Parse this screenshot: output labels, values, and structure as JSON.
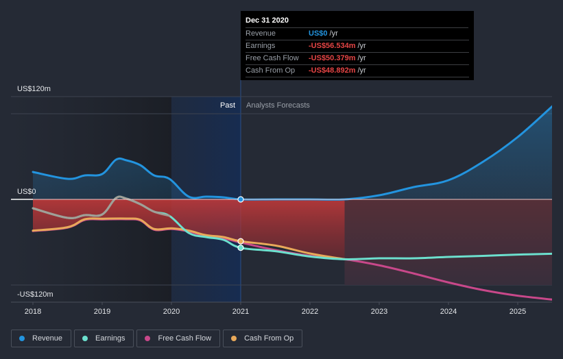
{
  "tooltip": {
    "date": "Dec 31 2020",
    "rows": [
      {
        "label": "Revenue",
        "value": "US$0",
        "unit": "/yr",
        "color": "#2394df"
      },
      {
        "label": "Earnings",
        "value": "-US$56.534m",
        "unit": "/yr",
        "color": "#e64545"
      },
      {
        "label": "Free Cash Flow",
        "value": "-US$50.379m",
        "unit": "/yr",
        "color": "#e64545"
      },
      {
        "label": "Cash From Op",
        "value": "-US$48.892m",
        "unit": "/yr",
        "color": "#e64545"
      }
    ]
  },
  "legend": [
    {
      "label": "Revenue",
      "color": "#2394df"
    },
    {
      "label": "Earnings",
      "color": "#6ce0ce"
    },
    {
      "label": "Free Cash Flow",
      "color": "#c8488a"
    },
    {
      "label": "Cash From Op",
      "color": "#e8a95a"
    }
  ],
  "chart_data": {
    "type": "line",
    "title": "",
    "xlabel": "",
    "ylabel": "",
    "ylim": [
      -120,
      120
    ],
    "xlim": [
      2017.7,
      2025.5
    ],
    "y_ticks": [
      {
        "value": 120,
        "label": "US$120m"
      },
      {
        "value": 0,
        "label": "US$0"
      },
      {
        "value": -120,
        "label": "-US$120m"
      }
    ],
    "x_ticks": [
      {
        "value": 2018,
        "label": "2018"
      },
      {
        "value": 2019,
        "label": "2019"
      },
      {
        "value": 2020,
        "label": "2020"
      },
      {
        "value": 2021,
        "label": "2021"
      },
      {
        "value": 2022,
        "label": "2022"
      },
      {
        "value": 2023,
        "label": "2023"
      },
      {
        "value": 2024,
        "label": "2024"
      },
      {
        "value": 2025,
        "label": "2025"
      }
    ],
    "regions": {
      "past_label": "Past",
      "forecast_label": "Analysts Forecasts",
      "divider_x": 2021,
      "highlight_range": [
        2020,
        2021
      ]
    },
    "grid": true,
    "legend_position": "bottom-left",
    "units": "US$ millions",
    "series": [
      {
        "name": "Revenue",
        "color": "#2394df",
        "points": [
          [
            2018,
            32
          ],
          [
            2018.5,
            24
          ],
          [
            2018.75,
            28
          ],
          [
            2019,
            29.6
          ],
          [
            2019.2,
            46.4
          ],
          [
            2019.35,
            45.6
          ],
          [
            2019.55,
            40
          ],
          [
            2019.75,
            28
          ],
          [
            2019.97,
            24
          ],
          [
            2020.25,
            3.2
          ],
          [
            2020.5,
            3.2
          ],
          [
            2020.75,
            2.4
          ],
          [
            2021,
            0
          ],
          [
            2021.5,
            0
          ],
          [
            2022,
            0
          ],
          [
            2022.5,
            0
          ],
          [
            2023,
            4.8
          ],
          [
            2023.5,
            14.4
          ],
          [
            2024,
            22.4
          ],
          [
            2024.5,
            44
          ],
          [
            2025,
            72.8
          ],
          [
            2025.5,
            108.8
          ]
        ]
      },
      {
        "name": "Earnings",
        "color": "#6ce0ce",
        "points": [
          [
            2018,
            -10.4
          ],
          [
            2018.5,
            -21.6
          ],
          [
            2018.75,
            -18.4
          ],
          [
            2019,
            -17.6
          ],
          [
            2019.2,
            1.6
          ],
          [
            2019.35,
            0.8
          ],
          [
            2019.55,
            -5.6
          ],
          [
            2019.75,
            -14.4
          ],
          [
            2019.97,
            -19.2
          ],
          [
            2020.25,
            -39.2
          ],
          [
            2020.5,
            -44
          ],
          [
            2020.75,
            -47.2
          ],
          [
            2021,
            -56.534
          ],
          [
            2021.5,
            -60.5
          ],
          [
            2022,
            -66.7
          ],
          [
            2022.5,
            -69.9
          ],
          [
            2023,
            -68.8
          ],
          [
            2023.5,
            -68.8
          ],
          [
            2024,
            -67.2
          ],
          [
            2024.5,
            -66
          ],
          [
            2025,
            -64.5
          ],
          [
            2025.5,
            -63.5
          ]
        ]
      },
      {
        "name": "Free Cash Flow",
        "color": "#c8488a",
        "points": [
          [
            2018,
            -37
          ],
          [
            2018.5,
            -33
          ],
          [
            2018.75,
            -24
          ],
          [
            2019,
            -23.4
          ],
          [
            2019.35,
            -23.2
          ],
          [
            2019.55,
            -24.6
          ],
          [
            2019.75,
            -35.4
          ],
          [
            2020,
            -34.6
          ],
          [
            2020.25,
            -37.5
          ],
          [
            2020.5,
            -43
          ],
          [
            2020.75,
            -45.5
          ],
          [
            2021,
            -50.379
          ],
          [
            2021.5,
            -59.2
          ],
          [
            2022,
            -65.9
          ],
          [
            2022.5,
            -69.9
          ],
          [
            2023,
            -77
          ],
          [
            2023.5,
            -86.6
          ],
          [
            2024,
            -97
          ],
          [
            2024.5,
            -105.9
          ],
          [
            2025,
            -112.5
          ],
          [
            2025.5,
            -117
          ]
        ]
      },
      {
        "name": "Cash From Op",
        "color": "#e8a95a",
        "points": [
          [
            2018,
            -36.5
          ],
          [
            2018.5,
            -32.5
          ],
          [
            2018.75,
            -23.2
          ],
          [
            2019,
            -22.6
          ],
          [
            2019.35,
            -22.4
          ],
          [
            2019.55,
            -23.8
          ],
          [
            2019.75,
            -34.6
          ],
          [
            2020,
            -33.8
          ],
          [
            2020.25,
            -36.5
          ],
          [
            2020.5,
            -41.8
          ],
          [
            2020.75,
            -44
          ],
          [
            2021,
            -48.892
          ],
          [
            2021.5,
            -53.9
          ],
          [
            2022,
            -63.2
          ],
          [
            2022.5,
            -69.9
          ]
        ]
      }
    ],
    "highlighted_point": {
      "x": 2021,
      "label": "Dec 31 2020"
    }
  }
}
